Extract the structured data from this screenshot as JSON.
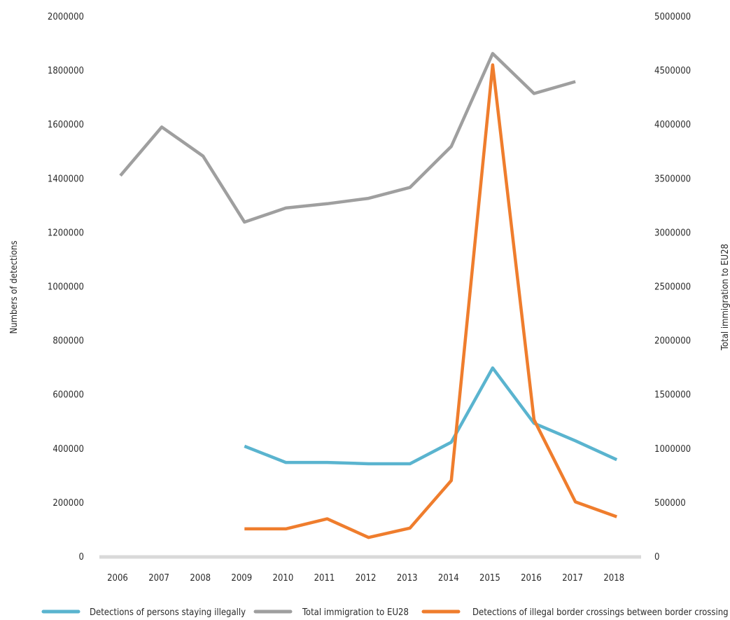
{
  "chart_data": {
    "type": "line",
    "categories": [
      "2006",
      "2007",
      "2008",
      "2009",
      "2010",
      "2011",
      "2012",
      "2013",
      "2014",
      "2015",
      "2016",
      "2017",
      "2018"
    ],
    "y_left": {
      "label": "Numbers of detections",
      "ticks": [
        "0",
        "200000",
        "400000",
        "600000",
        "800000",
        "1000000",
        "1200000",
        "1400000",
        "1600000",
        "1800000",
        "2000000"
      ],
      "range": [
        0,
        2000000
      ]
    },
    "y_right": {
      "label": "Total immigration to EU28",
      "ticks": [
        "0",
        "500000",
        "1000000",
        "1500000",
        "2000000",
        "2500000",
        "3000000",
        "3500000",
        "4000000",
        "4500000",
        "5000000"
      ],
      "range": [
        0,
        5000000
      ]
    },
    "series": [
      {
        "name": "Detections of persons staying illegally",
        "axis": "left",
        "color": "#5ab4cf",
        "values": [
          null,
          null,
          null,
          410000,
          350000,
          350000,
          345000,
          345000,
          425000,
          700000,
          495000,
          430000,
          360000
        ]
      },
      {
        "name": "Total immigration to EU28",
        "axis": "right",
        "color": "#9f9f9f",
        "values": [
          3530000,
          3980000,
          3710000,
          3100000,
          3230000,
          3270000,
          3320000,
          3420000,
          3800000,
          4660000,
          4290000,
          4400000,
          null
        ]
      },
      {
        "name": "Detections of illegal border crossings between border crossing points",
        "axis": "left",
        "color": "#ef7d2d",
        "values": [
          null,
          null,
          null,
          104000,
          104000,
          141000,
          72000,
          107000,
          283000,
          1822000,
          508000,
          204000,
          149000
        ]
      }
    ],
    "grid": false,
    "legend_position": "bottom"
  }
}
